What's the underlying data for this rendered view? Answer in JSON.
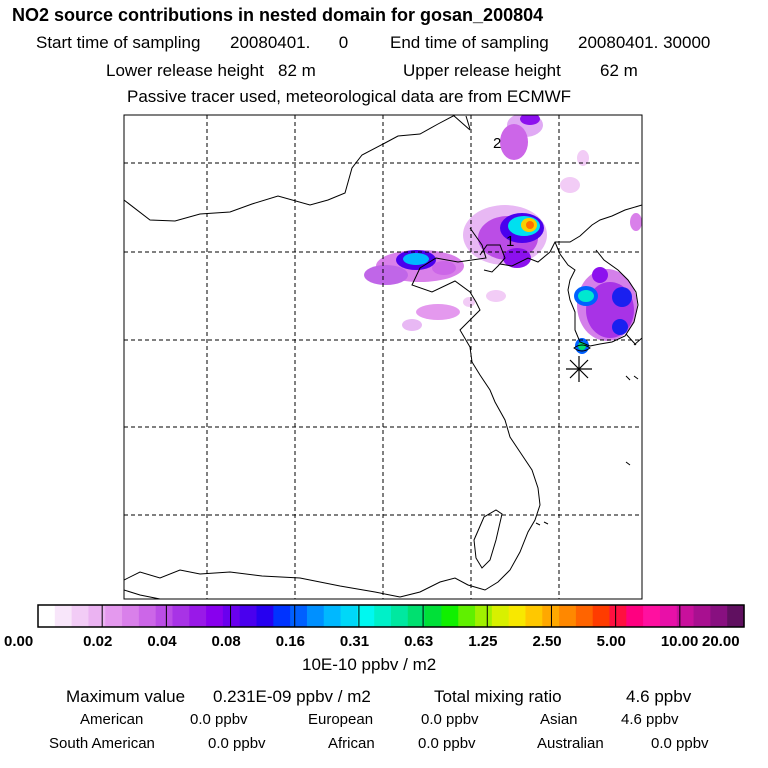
{
  "header": {
    "title": "NO2 source contributions in nested domain for gosan_200804",
    "start_label": "Start time of sampling",
    "start_value": "20080401.      0",
    "end_label": "End time of sampling",
    "end_value": "20080401. 30000",
    "lower_label": "Lower release height",
    "lower_value": "82 m",
    "upper_label": "Upper release height",
    "upper_value": "62 m",
    "note": "Passive tracer used, meteorological data are from ECMWF"
  },
  "map": {
    "markers": [
      {
        "label": "2"
      },
      {
        "label": "1"
      }
    ],
    "receptor_icon": "asterisk-receptor-icon"
  },
  "colorbar": {
    "ticks": [
      "0.00",
      "0.02",
      "0.04",
      "0.08",
      "0.16",
      "0.31",
      "0.63",
      "1.25",
      "2.50",
      "5.00",
      "10.00",
      "20.00"
    ],
    "units": "10E-10 ppbv / m2",
    "colors": [
      "#ffffff",
      "#f8e6fa",
      "#f2ccf6",
      "#ebb3f2",
      "#e499ee",
      "#d980ea",
      "#cc66e8",
      "#bb4de6",
      "#a833e6",
      "#9919e8",
      "#8800ee",
      "#6a00ee",
      "#4a00ee",
      "#2600f0",
      "#0033ff",
      "#0060ff",
      "#0090ff",
      "#00b8ff",
      "#00d8f8",
      "#00f8f0",
      "#00f0c8",
      "#00e8a0",
      "#00e070",
      "#00e038",
      "#10f000",
      "#60f000",
      "#a0f000",
      "#d8f000",
      "#f8e800",
      "#ffc800",
      "#ffa800",
      "#ff8800",
      "#ff6400",
      "#ff3c00",
      "#ff1040",
      "#ff0080",
      "#ff10a0",
      "#e810a8",
      "#c8109c",
      "#a81090",
      "#881080",
      "#601060"
    ]
  },
  "footer": {
    "max_label": "Maximum value",
    "max_value": "0.231E-09 ppbv / m2",
    "total_label": "Total mixing ratio",
    "total_value": "4.6 ppbv",
    "sources": [
      {
        "name": "American",
        "value": "0.0 ppbv"
      },
      {
        "name": "European",
        "value": "0.0 ppbv"
      },
      {
        "name": "Asian",
        "value": "4.6 ppbv"
      },
      {
        "name": "South American",
        "value": "0.0 ppbv"
      },
      {
        "name": "African",
        "value": "0.0 ppbv"
      },
      {
        "name": "Australian",
        "value": "0.0 ppbv"
      }
    ]
  }
}
